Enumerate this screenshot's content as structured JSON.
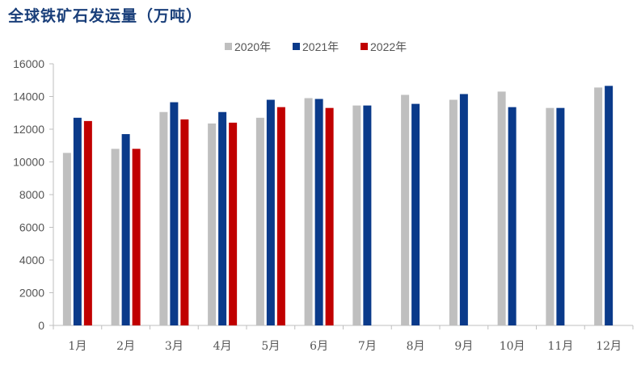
{
  "chart_data": {
    "type": "bar",
    "title": "全球铁矿石发运量（万吨）",
    "categories": [
      "1月",
      "2月",
      "3月",
      "4月",
      "5月",
      "6月",
      "7月",
      "8月",
      "9月",
      "10月",
      "11月",
      "12月"
    ],
    "series": [
      {
        "name": "2020年",
        "color": "#bfbfbf",
        "values": [
          10550,
          10800,
          13050,
          12350,
          12700,
          13900,
          13450,
          14100,
          13800,
          14300,
          13300,
          14550
        ]
      },
      {
        "name": "2021年",
        "color": "#0a3a8a",
        "values": [
          12700,
          11700,
          13650,
          13050,
          13800,
          13850,
          13450,
          13550,
          14150,
          13350,
          13300,
          14650
        ]
      },
      {
        "name": "2022年",
        "color": "#c00000",
        "values": [
          12500,
          10800,
          12600,
          12400,
          13350,
          13300,
          null,
          null,
          null,
          null,
          null,
          null
        ]
      }
    ],
    "ylim": [
      0,
      16000
    ],
    "yticks": [
      "0",
      "2000",
      "4000",
      "6000",
      "8000",
      "10000",
      "12000",
      "14000",
      "16000"
    ],
    "xlabel": "",
    "ylabel": "",
    "grid": false,
    "legend_position": "top-center"
  }
}
